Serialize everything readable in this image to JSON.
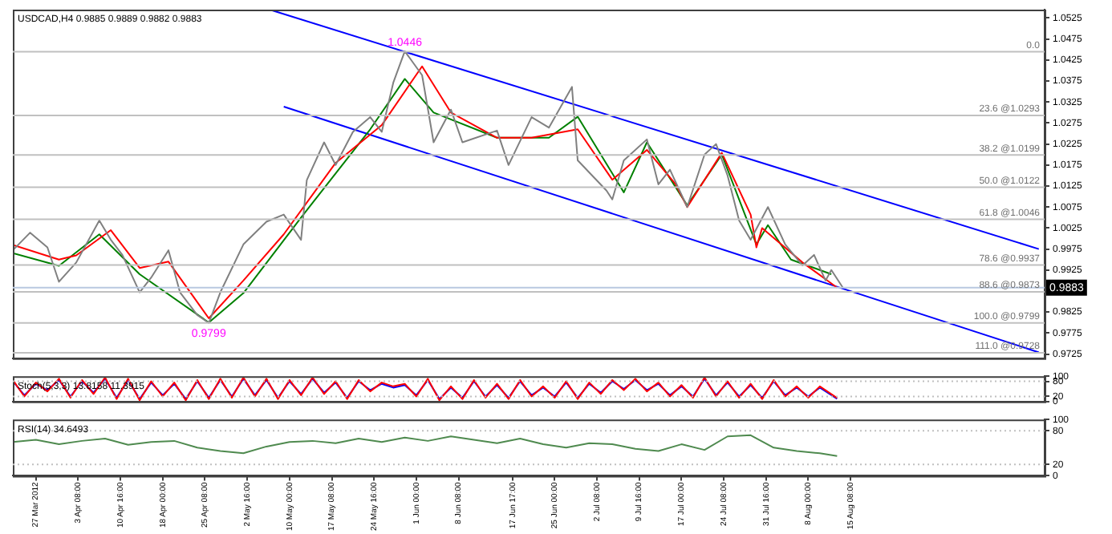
{
  "chart_data": [
    {
      "type": "line",
      "title": "USDCAD,H4 0.9885 0.9889 0.9882 0.9883",
      "xlim": [
        "2012-03-23",
        "2012-09-18"
      ],
      "ylim": [
        0.9715,
        1.0545
      ],
      "tick_labels": "y",
      "yticks": [
        1.0525,
        1.0475,
        1.0425,
        1.0375,
        1.0325,
        1.0275,
        1.0225,
        1.0175,
        1.0125,
        1.0075,
        1.0025,
        0.9975,
        0.9925,
        0.9825,
        0.9775,
        0.9725
      ],
      "series": [
        {
          "color": "#808080",
          "x": [
            "2012-03-23",
            "2012-03-26",
            "2012-03-29",
            "2012-03-31",
            "2012-04-03",
            "2012-04-07",
            "2012-04-09",
            "2012-04-11",
            "2012-04-14",
            "2012-04-16",
            "2012-04-19",
            "2012-04-21",
            "2012-04-24",
            "2012-04-26",
            "2012-04-28",
            "2012-05-02",
            "2012-05-06",
            "2012-05-09",
            "2012-05-12",
            "2012-05-13",
            "2012-05-16",
            "2012-05-18",
            "2012-05-21",
            "2012-05-24",
            "2012-05-26",
            "2012-05-28",
            "2012-05-30",
            "2012-06-02",
            "2012-06-04",
            "2012-06-07",
            "2012-06-09",
            "2012-06-15",
            "2012-06-17",
            "2012-06-21",
            "2012-06-24",
            "2012-06-28",
            "2012-06-29",
            "2012-07-04",
            "2012-07-05",
            "2012-07-07",
            "2012-07-11",
            "2012-07-13",
            "2012-07-15",
            "2012-07-18",
            "2012-07-21",
            "2012-07-23",
            "2012-07-25",
            "2012-07-27",
            "2012-07-29",
            "2012-08-01",
            "2012-08-04",
            "2012-08-07",
            "2012-08-09",
            "2012-08-11",
            "2012-08-12",
            "2012-08-14"
          ],
          "values": [
            0.9972,
            1.0014,
            0.9979,
            0.9897,
            0.9943,
            1.0043,
            0.9997,
            0.9961,
            0.9872,
            0.9907,
            0.9972,
            0.9872,
            0.9818,
            0.9799,
            0.9872,
            0.9986,
            1.004,
            1.0057,
            0.9997,
            1.0139,
            1.0229,
            1.0175,
            1.0254,
            1.0289,
            1.0254,
            1.0371,
            1.0446,
            1.0389,
            1.0229,
            1.0307,
            1.0229,
            1.0257,
            1.0175,
            1.0289,
            1.0264,
            1.0361,
            1.0186,
            1.0114,
            1.0093,
            1.0186,
            1.0236,
            1.0129,
            1.0164,
            1.0075,
            1.02,
            1.0225,
            1.015,
            1.0043,
            0.9997,
            1.0075,
            0.9986,
            0.9936,
            0.9961,
            0.99,
            0.9925,
            0.9883
          ]
        },
        {
          "color": "#ff0000",
          "x": [
            "2012-03-23",
            "2012-03-31",
            "2012-04-03",
            "2012-04-09",
            "2012-04-14",
            "2012-04-19",
            "2012-04-26",
            "2012-05-02",
            "2012-05-09",
            "2012-05-18",
            "2012-05-26",
            "2012-06-02",
            "2012-06-07",
            "2012-06-15",
            "2012-06-21",
            "2012-06-29",
            "2012-07-05",
            "2012-07-11",
            "2012-07-16",
            "2012-07-18",
            "2012-07-24",
            "2012-07-29",
            "2012-07-30",
            "2012-07-31",
            "2012-08-07",
            "2012-08-13"
          ],
          "values": [
            0.9985,
            0.995,
            0.996,
            1.002,
            0.993,
            0.9945,
            0.981,
            0.99,
            1.001,
            1.018,
            1.027,
            1.041,
            1.03,
            1.024,
            1.024,
            1.026,
            1.014,
            1.0211,
            1.0129,
            1.0075,
            1.0204,
            1.0057,
            0.9979,
            1.0025,
            0.9943,
            0.9883
          ]
        },
        {
          "color": "#008000",
          "x": [
            "2012-03-23",
            "2012-03-31",
            "2012-04-07",
            "2012-04-14",
            "2012-04-26",
            "2012-05-02",
            "2012-05-12",
            "2012-05-24",
            "2012-05-30",
            "2012-06-04",
            "2012-06-15",
            "2012-06-24",
            "2012-06-29",
            "2012-07-07",
            "2012-07-11",
            "2012-07-18",
            "2012-07-24",
            "2012-07-30",
            "2012-08-01",
            "2012-08-05",
            "2012-08-12"
          ],
          "values": [
            0.9965,
            0.9935,
            1.001,
            0.9915,
            0.98,
            0.987,
            1.005,
            1.026,
            1.038,
            1.03,
            1.024,
            1.024,
            1.029,
            1.011,
            1.0229,
            1.0079,
            1.02,
            0.9986,
            1.0032,
            0.995,
            0.9915
          ]
        },
        {
          "color": "#0000ff",
          "x": [
            "2012-05-07",
            "2012-09-17"
          ],
          "values": [
            1.0543,
            0.9975
          ]
        },
        {
          "color": "#0000ff",
          "x": [
            "2012-05-09",
            "2012-09-17"
          ],
          "values": [
            1.0314,
            0.9729
          ]
        }
      ],
      "ref_lines": [
        {
          "axis": "y",
          "value": 1.0445,
          "color": "#c0c0c0"
        },
        {
          "axis": "y",
          "value": 1.0293,
          "label": "23.6 @1.0293",
          "color": "#c0c0c0"
        },
        {
          "axis": "y",
          "value": 1.0199,
          "label": "38.2 @1.0199",
          "color": "#c0c0c0"
        },
        {
          "axis": "y",
          "value": 1.0122,
          "label": "50.0 @1.0122",
          "color": "#c0c0c0"
        },
        {
          "axis": "y",
          "value": 1.0046,
          "label": "61.8 @1.0046",
          "color": "#c0c0c0"
        },
        {
          "axis": "y",
          "value": 0.9937,
          "label": "78.6 @0.9937",
          "color": "#c0c0c0"
        },
        {
          "axis": "y",
          "value": 0.9873,
          "label": "88.6 @0.9873",
          "color": "#c0c0c0"
        },
        {
          "axis": "y",
          "value": 0.9799,
          "label": "100.0 @0.9799",
          "color": "#c0c0c0"
        },
        {
          "axis": "y",
          "value": 0.9728,
          "label": "111.0 @0.9728",
          "color": "#c0c0c0"
        },
        {
          "axis": "y",
          "value": 0.9883,
          "label": "0.9883",
          "color": "#b8c8e0",
          "line_style": "solid"
        }
      ],
      "annotations": [
        {
          "text": "1.0446",
          "x": "2012-05-30",
          "y": 1.0446
        },
        {
          "text": "0.9799",
          "x": "2012-04-26",
          "y": 0.9799
        },
        {
          "text": "0.0",
          "x": "2012-09-18",
          "y": 1.0445
        }
      ]
    },
    {
      "type": "line",
      "title": "Stoch(5,3,3) 13.8158 11.3915",
      "xlim": [
        "2012-03-23",
        "2012-09-18"
      ],
      "ylim": [
        0,
        100
      ],
      "yticks": [
        100,
        80,
        20,
        0
      ],
      "tick_labels": "y",
      "series": [
        {
          "color": "#ff0000",
          "x": [
            "2012-03-23",
            "2012-03-25",
            "2012-03-27",
            "2012-03-29",
            "2012-03-31",
            "2012-04-02",
            "2012-04-04",
            "2012-04-06",
            "2012-04-08",
            "2012-04-10",
            "2012-04-12",
            "2012-04-14",
            "2012-04-16",
            "2012-04-18",
            "2012-04-20",
            "2012-04-22",
            "2012-04-24",
            "2012-04-26",
            "2012-04-28",
            "2012-04-30",
            "2012-05-02",
            "2012-05-04",
            "2012-05-06",
            "2012-05-08",
            "2012-05-10",
            "2012-05-12",
            "2012-05-14",
            "2012-05-16",
            "2012-05-18",
            "2012-05-20",
            "2012-05-22",
            "2012-05-24",
            "2012-05-26",
            "2012-05-28",
            "2012-05-30",
            "2012-06-01",
            "2012-06-03",
            "2012-06-05",
            "2012-06-07",
            "2012-06-09",
            "2012-06-11",
            "2012-06-13",
            "2012-06-15",
            "2012-06-17",
            "2012-06-19",
            "2012-06-21",
            "2012-06-23",
            "2012-06-25",
            "2012-06-27",
            "2012-06-29",
            "2012-07-01",
            "2012-07-03",
            "2012-07-05",
            "2012-07-07",
            "2012-07-09",
            "2012-07-11",
            "2012-07-13",
            "2012-07-15",
            "2012-07-17",
            "2012-07-19",
            "2012-07-21",
            "2012-07-23",
            "2012-07-25",
            "2012-07-27",
            "2012-07-29",
            "2012-07-31",
            "2012-08-02",
            "2012-08-04",
            "2012-08-06",
            "2012-08-08",
            "2012-08-10",
            "2012-08-13"
          ],
          "values": [
            85,
            20,
            75,
            40,
            90,
            15,
            85,
            30,
            95,
            10,
            90,
            5,
            80,
            20,
            75,
            5,
            85,
            10,
            90,
            15,
            95,
            20,
            90,
            10,
            85,
            25,
            95,
            30,
            80,
            10,
            85,
            40,
            75,
            60,
            70,
            20,
            90,
            5,
            60,
            10,
            85,
            15,
            70,
            10,
            85,
            20,
            60,
            15,
            80,
            10,
            75,
            30,
            85,
            45,
            90,
            40,
            75,
            20,
            65,
            15,
            95,
            20,
            80,
            15,
            70,
            10,
            85,
            20,
            60,
            15,
            60,
            14
          ]
        },
        {
          "color": "#0000ff",
          "x": [
            "2012-03-23",
            "2012-03-25",
            "2012-03-27",
            "2012-03-29",
            "2012-03-31",
            "2012-04-02",
            "2012-04-04",
            "2012-04-06",
            "2012-04-08",
            "2012-04-10",
            "2012-04-12",
            "2012-04-14",
            "2012-04-16",
            "2012-04-18",
            "2012-04-20",
            "2012-04-22",
            "2012-04-24",
            "2012-04-26",
            "2012-04-28",
            "2012-04-30",
            "2012-05-02",
            "2012-05-04",
            "2012-05-06",
            "2012-05-08",
            "2012-05-10",
            "2012-05-12",
            "2012-05-14",
            "2012-05-16",
            "2012-05-18",
            "2012-05-20",
            "2012-05-22",
            "2012-05-24",
            "2012-05-26",
            "2012-05-28",
            "2012-05-30",
            "2012-06-01",
            "2012-06-03",
            "2012-06-05",
            "2012-06-07",
            "2012-06-09",
            "2012-06-11",
            "2012-06-13",
            "2012-06-15",
            "2012-06-17",
            "2012-06-19",
            "2012-06-21",
            "2012-06-23",
            "2012-06-25",
            "2012-06-27",
            "2012-06-29",
            "2012-07-01",
            "2012-07-03",
            "2012-07-05",
            "2012-07-07",
            "2012-07-09",
            "2012-07-11",
            "2012-07-13",
            "2012-07-15",
            "2012-07-17",
            "2012-07-19",
            "2012-07-21",
            "2012-07-23",
            "2012-07-25",
            "2012-07-27",
            "2012-07-29",
            "2012-07-31",
            "2012-08-02",
            "2012-08-04",
            "2012-08-06",
            "2012-08-08",
            "2012-08-10",
            "2012-08-13"
          ],
          "values": [
            80,
            25,
            70,
            45,
            85,
            20,
            80,
            35,
            90,
            15,
            85,
            10,
            75,
            25,
            70,
            10,
            80,
            15,
            85,
            20,
            90,
            25,
            85,
            15,
            80,
            30,
            90,
            35,
            75,
            15,
            80,
            45,
            70,
            55,
            65,
            25,
            85,
            10,
            55,
            15,
            80,
            20,
            65,
            15,
            80,
            25,
            55,
            20,
            75,
            15,
            70,
            35,
            80,
            50,
            85,
            45,
            70,
            25,
            60,
            20,
            90,
            25,
            75,
            20,
            65,
            15,
            80,
            25,
            55,
            20,
            55,
            11
          ]
        }
      ],
      "ref_lines": [
        {
          "axis": "y",
          "value": 80,
          "color": "#c0c0c0",
          "line_style": "dotted"
        },
        {
          "axis": "y",
          "value": 20,
          "color": "#c0c0c0",
          "line_style": "dotted"
        }
      ]
    },
    {
      "type": "line",
      "title": "RSI(14) 34.6493",
      "xlim": [
        "2012-03-23",
        "2012-09-18"
      ],
      "ylim": [
        0,
        100
      ],
      "yticks": [
        100,
        80,
        20,
        0
      ],
      "xticks": [
        {
          "value": "2012-03-27",
          "label": "27 Mar 2012"
        },
        {
          "value": "2012-04-03T08:00",
          "label": "3 Apr 08:00"
        },
        {
          "value": "2012-04-10T16:00",
          "label": "10 Apr 16:00"
        },
        {
          "value": "2012-04-18",
          "label": "18 Apr 00:00"
        },
        {
          "value": "2012-04-25T08:00",
          "label": "25 Apr 08:00"
        },
        {
          "value": "2012-05-02T16:00",
          "label": "2 May 16:00"
        },
        {
          "value": "2012-05-10",
          "label": "10 May 00:00"
        },
        {
          "value": "2012-05-17T08:00",
          "label": "17 May 08:00"
        },
        {
          "value": "2012-05-24T16:00",
          "label": "24 May 16:00"
        },
        {
          "value": "2012-06-01",
          "label": "1 Jun 00:00"
        },
        {
          "value": "2012-06-08T08:00",
          "label": "8 Jun 08:00"
        },
        {
          "value": "2012-06-17T17:00",
          "label": "17 Jun 17:00"
        },
        {
          "value": "2012-06-25",
          "label": "25 Jun 00:00"
        },
        {
          "value": "2012-07-02T08:00",
          "label": "2 Jul 08:00"
        },
        {
          "value": "2012-07-09T16:00",
          "label": "9 Jul 16:00"
        },
        {
          "value": "2012-07-17",
          "label": "17 Jul 00:00"
        },
        {
          "value": "2012-07-24T08:00",
          "label": "24 Jul 08:00"
        },
        {
          "value": "2012-07-31T16:00",
          "label": "31 Jul 16:00"
        },
        {
          "value": "2012-08-08",
          "label": "8 Aug 00:00"
        },
        {
          "value": "2012-08-15T08:00",
          "label": "15 Aug 08:00"
        }
      ],
      "series": [
        {
          "color": "#4f8a4f",
          "x": [
            "2012-03-23",
            "2012-03-27",
            "2012-03-31",
            "2012-04-04",
            "2012-04-08",
            "2012-04-12",
            "2012-04-16",
            "2012-04-20",
            "2012-04-24",
            "2012-04-28",
            "2012-05-02",
            "2012-05-06",
            "2012-05-10",
            "2012-05-14",
            "2012-05-18",
            "2012-05-22",
            "2012-05-26",
            "2012-05-30",
            "2012-06-03",
            "2012-06-07",
            "2012-06-11",
            "2012-06-15",
            "2012-06-19",
            "2012-06-23",
            "2012-06-27",
            "2012-07-01",
            "2012-07-05",
            "2012-07-09",
            "2012-07-13",
            "2012-07-17",
            "2012-07-21",
            "2012-07-25",
            "2012-07-29",
            "2012-08-02",
            "2012-08-06",
            "2012-08-10",
            "2012-08-13"
          ],
          "values": [
            60,
            64,
            56,
            62,
            66,
            55,
            60,
            62,
            50,
            44,
            40,
            52,
            60,
            62,
            58,
            66,
            60,
            68,
            62,
            70,
            64,
            58,
            66,
            56,
            50,
            58,
            56,
            48,
            44,
            56,
            46,
            70,
            72,
            50,
            44,
            40,
            35
          ]
        }
      ],
      "ref_lines": [
        {
          "axis": "y",
          "value": 80,
          "color": "#c0c0c0",
          "line_style": "dotted"
        },
        {
          "axis": "y",
          "value": 20,
          "color": "#c0c0c0",
          "line_style": "dotted"
        }
      ]
    }
  ]
}
